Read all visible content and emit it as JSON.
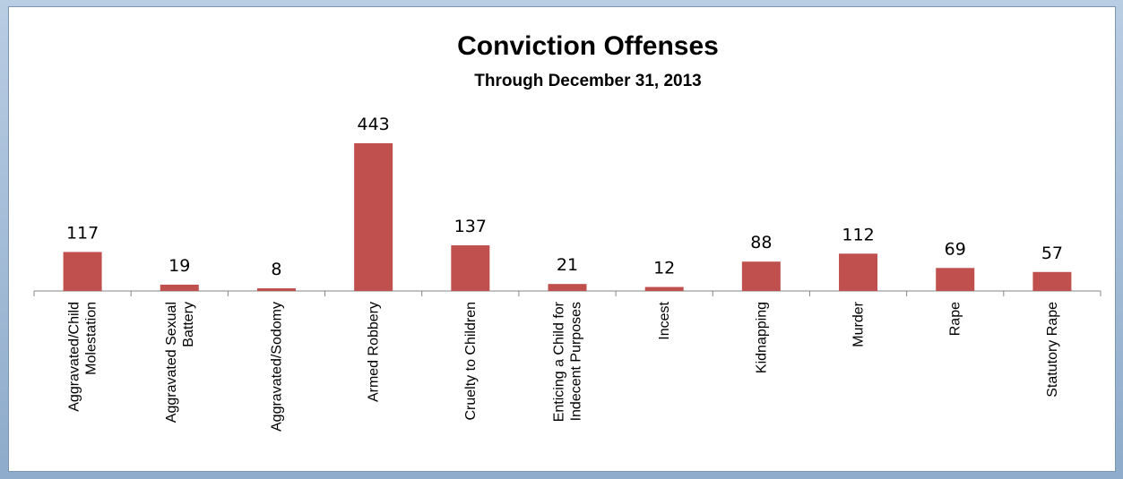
{
  "chart_data": {
    "type": "bar",
    "title": "Conviction Offenses",
    "subtitle": "Through December 31, 2013",
    "categories": [
      [
        "Aggravated/Child",
        "Molestation"
      ],
      [
        "Aggravated Sexual",
        "Battery"
      ],
      [
        "Aggravated/Sodomy"
      ],
      [
        "Armed Robbery"
      ],
      [
        "Cruelty to Children"
      ],
      [
        "Enticing a Child for",
        "Indecent Purposes"
      ],
      [
        "Incest"
      ],
      [
        "Kidnapping"
      ],
      [
        "Murder"
      ],
      [
        "Rape"
      ],
      [
        "Statutory Rape"
      ]
    ],
    "values": [
      117,
      19,
      8,
      443,
      137,
      21,
      12,
      88,
      112,
      69,
      57
    ],
    "ylim": [
      0,
      460
    ],
    "grid": false,
    "legend": "none",
    "bar_color": "#c0504d"
  }
}
